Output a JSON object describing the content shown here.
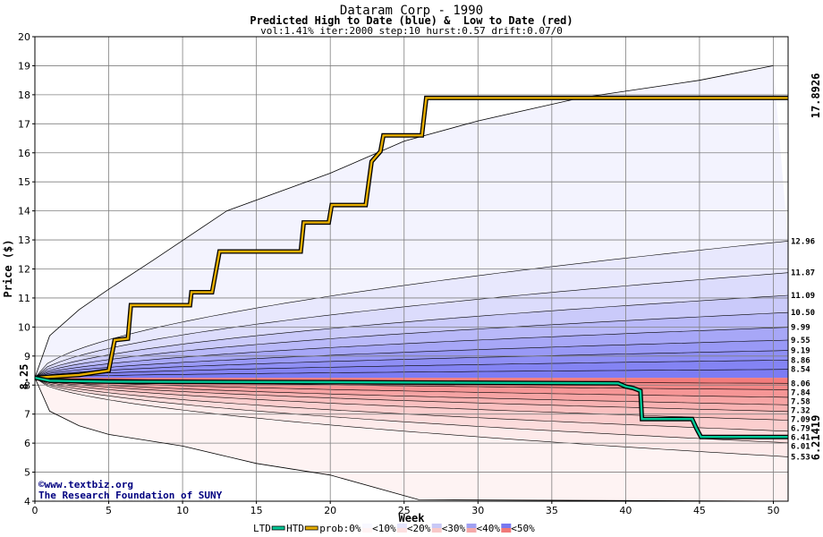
{
  "chart_data": {
    "type": "area",
    "title": "Dataram Corp - 1990",
    "subtitle": "Predicted High to Date (blue) &  Low to Date (red)",
    "params": "vol:1.41% iter:2000 step:10 hurst:0.57 drift:0.07/0",
    "xlabel": "Week",
    "ylabel": "Price ($)",
    "xlim": [
      0,
      51
    ],
    "ylim": [
      4,
      20
    ],
    "xticks": [
      0,
      5,
      10,
      15,
      20,
      25,
      30,
      35,
      40,
      45,
      50
    ],
    "yticks": [
      4,
      5,
      6,
      7,
      8,
      9,
      10,
      11,
      12,
      13,
      14,
      15,
      16,
      17,
      18,
      19,
      20
    ],
    "start_price": 8.25,
    "start_label": "8.25",
    "grid": true,
    "high_band_end_labels": [
      "12.96",
      "11.87",
      "11.09",
      "10.50",
      "9.99",
      "9.55",
      "9.19",
      "8.86",
      "8.54"
    ],
    "low_band_end_labels": [
      "8.06",
      "7.84",
      "7.58",
      "7.32",
      "7.09",
      "6.79",
      "6.41",
      "6.01",
      "5.53"
    ],
    "high_band_end_values": [
      12.96,
      11.87,
      11.09,
      10.5,
      9.99,
      9.55,
      9.19,
      8.86,
      8.54
    ],
    "low_band_end_values": [
      8.06,
      7.84,
      7.58,
      7.32,
      7.09,
      6.79,
      6.41,
      6.01,
      5.53
    ],
    "outer_upper": [
      [
        0,
        8.25
      ],
      [
        1,
        9.7
      ],
      [
        3,
        10.6
      ],
      [
        5,
        11.3
      ],
      [
        8,
        12.3
      ],
      [
        13,
        14.0
      ],
      [
        20,
        15.3
      ],
      [
        25,
        16.4
      ],
      [
        30,
        17.1
      ],
      [
        37,
        17.9
      ],
      [
        45,
        18.5
      ],
      [
        50,
        19.0
      ]
    ],
    "outer_lower": [
      [
        0,
        8.25
      ],
      [
        1,
        7.1
      ],
      [
        3,
        6.6
      ],
      [
        5,
        6.3
      ],
      [
        10,
        5.9
      ],
      [
        15,
        5.3
      ],
      [
        20,
        4.9
      ],
      [
        26,
        4.05
      ],
      [
        51,
        4.0
      ]
    ],
    "htd_label": "17.8926",
    "ltd_label": "6.21419",
    "htd_color": "#E8B000",
    "ltd_color": "#00C896",
    "htd_label_color": "#A07000",
    "ltd_label_color": "#008060",
    "high_color": "#5050F0",
    "low_color": "#F05050",
    "htd_series": [
      [
        0,
        8.25
      ],
      [
        1.5,
        8.3
      ],
      [
        3,
        8.35
      ],
      [
        5,
        8.5
      ],
      [
        5.4,
        9.55
      ],
      [
        6.3,
        9.6
      ],
      [
        6.5,
        10.75
      ],
      [
        10.5,
        10.75
      ],
      [
        10.6,
        11.2
      ],
      [
        12,
        11.2
      ],
      [
        12.5,
        12.6
      ],
      [
        18,
        12.6
      ],
      [
        18.2,
        13.6
      ],
      [
        19.9,
        13.6
      ],
      [
        20.1,
        14.2
      ],
      [
        22.4,
        14.2
      ],
      [
        22.8,
        15.7
      ],
      [
        23.4,
        16.05
      ],
      [
        23.6,
        16.6
      ],
      [
        26.2,
        16.6
      ],
      [
        26.5,
        17.8926
      ],
      [
        51,
        17.8926
      ]
    ],
    "ltd_series": [
      [
        0,
        8.25
      ],
      [
        1,
        8.15
      ],
      [
        5,
        8.12
      ],
      [
        20,
        8.1
      ],
      [
        39.5,
        8.06
      ],
      [
        40,
        7.95
      ],
      [
        40.5,
        7.9
      ],
      [
        41,
        7.8
      ],
      [
        41.1,
        6.83
      ],
      [
        44.5,
        6.83
      ],
      [
        44.8,
        6.5
      ],
      [
        45.1,
        6.21419
      ],
      [
        51,
        6.21419
      ]
    ],
    "credits": [
      "©www.textbiz.org",
      "The Research Foundation of SUNY"
    ],
    "legend": {
      "ltd": "LTD",
      "htd": "HTD",
      "prob_prefix": "prob:0%",
      "items": [
        "<10%",
        "<20%",
        "<30%",
        "<40%",
        "<50%"
      ]
    }
  }
}
